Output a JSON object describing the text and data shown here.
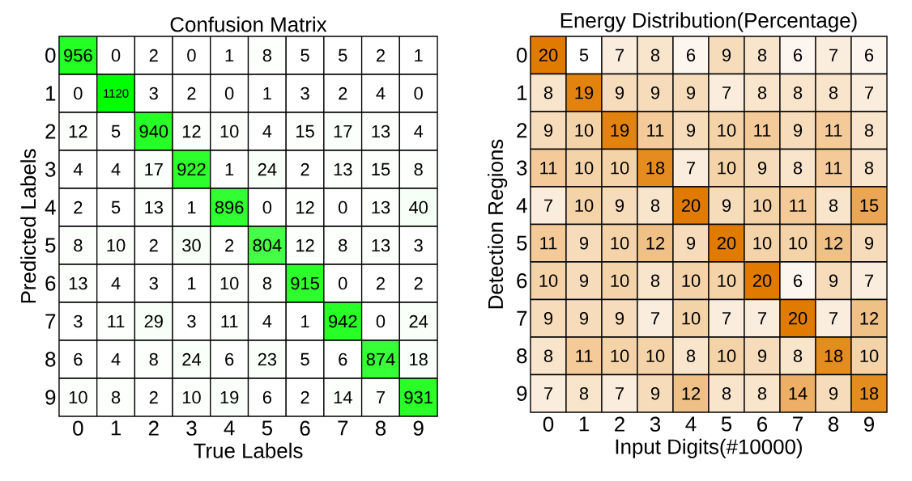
{
  "chart_data": [
    {
      "type": "heatmap",
      "title": "Confusion Matrix",
      "xlabel": "True Labels",
      "ylabel": "Predicted Labels",
      "color": "#00ff00",
      "data_labels": true,
      "categories": [
        "0",
        "1",
        "2",
        "3",
        "4",
        "5",
        "6",
        "7",
        "8",
        "9"
      ],
      "y_categories": [
        "0",
        "1",
        "2",
        "3",
        "4",
        "5",
        "6",
        "7",
        "8",
        "9"
      ],
      "cells": [
        [
          956,
          0,
          2,
          0,
          1,
          8,
          5,
          5,
          2,
          1
        ],
        [
          0,
          1120,
          3,
          2,
          0,
          1,
          3,
          2,
          4,
          0
        ],
        [
          12,
          5,
          940,
          12,
          10,
          4,
          15,
          17,
          13,
          4
        ],
        [
          4,
          4,
          17,
          922,
          1,
          24,
          2,
          13,
          15,
          8
        ],
        [
          2,
          5,
          13,
          1,
          896,
          0,
          12,
          0,
          13,
          40
        ],
        [
          8,
          10,
          2,
          30,
          2,
          804,
          12,
          8,
          13,
          3
        ],
        [
          13,
          4,
          3,
          1,
          10,
          8,
          915,
          0,
          2,
          2
        ],
        [
          3,
          11,
          29,
          3,
          11,
          4,
          1,
          942,
          0,
          24
        ],
        [
          6,
          4,
          8,
          24,
          6,
          23,
          5,
          6,
          874,
          18
        ],
        [
          10,
          8,
          2,
          10,
          19,
          6,
          2,
          14,
          7,
          931
        ]
      ]
    },
    {
      "type": "heatmap",
      "title": "Energy Distribution(Percentage)",
      "xlabel": "Input Digits(#10000)",
      "ylabel": "Detection Regions",
      "color": "#e07b00",
      "data_labels": true,
      "categories": [
        "0",
        "1",
        "2",
        "3",
        "4",
        "5",
        "6",
        "7",
        "8",
        "9"
      ],
      "y_categories": [
        "0",
        "1",
        "2",
        "3",
        "4",
        "5",
        "6",
        "7",
        "8",
        "9"
      ],
      "cells": [
        [
          20,
          5,
          7,
          8,
          6,
          9,
          8,
          6,
          7,
          6
        ],
        [
          8,
          19,
          9,
          9,
          9,
          7,
          8,
          8,
          8,
          7
        ],
        [
          9,
          10,
          19,
          11,
          9,
          10,
          11,
          9,
          11,
          8
        ],
        [
          11,
          10,
          10,
          18,
          7,
          10,
          9,
          8,
          11,
          8
        ],
        [
          7,
          10,
          9,
          8,
          20,
          9,
          10,
          11,
          8,
          15
        ],
        [
          11,
          9,
          10,
          12,
          9,
          20,
          10,
          10,
          12,
          9
        ],
        [
          10,
          9,
          10,
          8,
          10,
          10,
          20,
          6,
          9,
          7
        ],
        [
          9,
          9,
          9,
          7,
          10,
          7,
          7,
          20,
          7,
          12
        ],
        [
          8,
          11,
          10,
          10,
          8,
          10,
          9,
          8,
          18,
          10
        ],
        [
          7,
          8,
          7,
          9,
          12,
          8,
          8,
          14,
          9,
          18
        ]
      ]
    }
  ]
}
